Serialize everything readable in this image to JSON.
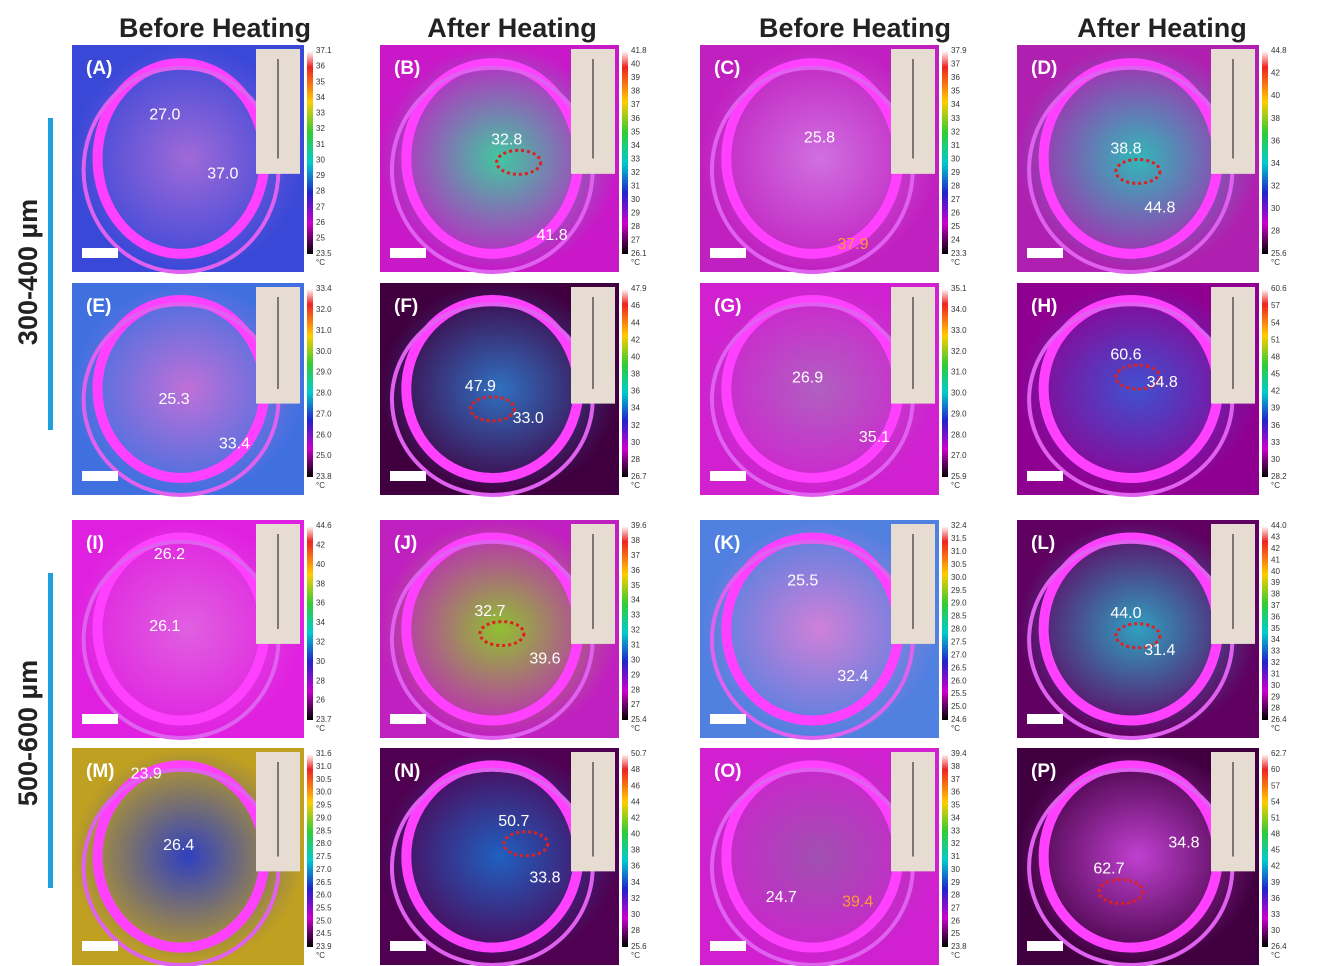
{
  "headers": [
    "Before Heating",
    "After Heating",
    "Before Heating",
    "After Heating"
  ],
  "row_labels": [
    "300-400 µm",
    "500-600 µm"
  ],
  "unit": "°C",
  "panels": [
    {
      "label": "(A)",
      "readings": [
        "27.0",
        "37.0"
      ],
      "scale": [
        "37.1",
        "36",
        "35",
        "34",
        "33",
        "32",
        "31",
        "30",
        "29",
        "28",
        "27",
        "26",
        "25",
        "23.5"
      ]
    },
    {
      "label": "(B)",
      "readings": [
        "32.8",
        "41.8"
      ],
      "scale": [
        "41.8",
        "40",
        "39",
        "38",
        "37",
        "36",
        "35",
        "34",
        "33",
        "32",
        "31",
        "30",
        "29",
        "28",
        "27",
        "26.1"
      ]
    },
    {
      "label": "(C)",
      "readings": [
        "25.8",
        "37.9"
      ],
      "scale": [
        "37.9",
        "37",
        "36",
        "35",
        "34",
        "33",
        "32",
        "31",
        "30",
        "29",
        "28",
        "27",
        "26",
        "25",
        "24",
        "23.3"
      ]
    },
    {
      "label": "(D)",
      "readings": [
        "38.8",
        "44.8"
      ],
      "scale": [
        "44.8",
        "42",
        "40",
        "38",
        "36",
        "34",
        "32",
        "30",
        "28",
        "25.6"
      ]
    },
    {
      "label": "(E)",
      "readings": [
        "25.3",
        "33.4"
      ],
      "scale": [
        "33.4",
        "32.0",
        "31.0",
        "30.0",
        "29.0",
        "28.0",
        "27.0",
        "26.0",
        "25.0",
        "23.8"
      ]
    },
    {
      "label": "(F)",
      "readings": [
        "47.9",
        "33.0"
      ],
      "scale": [
        "47.9",
        "46",
        "44",
        "42",
        "40",
        "38",
        "36",
        "34",
        "32",
        "30",
        "28",
        "26.7"
      ]
    },
    {
      "label": "(G)",
      "readings": [
        "26.9",
        "35.1"
      ],
      "scale": [
        "35.1",
        "34.0",
        "33.0",
        "32.0",
        "31.0",
        "30.0",
        "29.0",
        "28.0",
        "27.0",
        "25.9"
      ]
    },
    {
      "label": "(H)",
      "readings": [
        "60.6",
        "34.8"
      ],
      "scale": [
        "60.6",
        "57",
        "54",
        "51",
        "48",
        "45",
        "42",
        "39",
        "36",
        "33",
        "30",
        "28.2"
      ]
    },
    {
      "label": "(I)",
      "readings": [
        "26.2",
        "26.1"
      ],
      "scale": [
        "44.6",
        "42",
        "40",
        "38",
        "36",
        "34",
        "32",
        "30",
        "28",
        "26",
        "23.7"
      ]
    },
    {
      "label": "(J)",
      "readings": [
        "32.7",
        "39.6"
      ],
      "scale": [
        "39.6",
        "38",
        "37",
        "36",
        "35",
        "34",
        "33",
        "32",
        "31",
        "30",
        "29",
        "28",
        "27",
        "25.4"
      ]
    },
    {
      "label": "(K)",
      "readings": [
        "25.5",
        "32.4"
      ],
      "scale": [
        "32.4",
        "31.5",
        "31.0",
        "30.5",
        "30.0",
        "29.5",
        "29.0",
        "28.5",
        "28.0",
        "27.5",
        "27.0",
        "26.5",
        "26.0",
        "25.5",
        "25.0",
        "24.6"
      ]
    },
    {
      "label": "(L)",
      "readings": [
        "44.0",
        "31.4"
      ],
      "scale": [
        "44.0",
        "43",
        "42",
        "41",
        "40",
        "39",
        "38",
        "37",
        "36",
        "35",
        "34",
        "33",
        "32",
        "31",
        "30",
        "29",
        "28",
        "26.4"
      ]
    },
    {
      "label": "(M)",
      "readings": [
        "23.9",
        "26.4"
      ],
      "scale": [
        "31.6",
        "31.0",
        "30.5",
        "30.0",
        "29.5",
        "29.0",
        "28.5",
        "28.0",
        "27.5",
        "27.0",
        "26.5",
        "26.0",
        "25.5",
        "25.0",
        "24.5",
        "23.9"
      ]
    },
    {
      "label": "(N)",
      "readings": [
        "50.7",
        "33.8"
      ],
      "scale": [
        "50.7",
        "48",
        "46",
        "44",
        "42",
        "40",
        "38",
        "36",
        "34",
        "32",
        "30",
        "28",
        "25.6"
      ]
    },
    {
      "label": "(O)",
      "readings": [
        "24.7",
        "39.4"
      ],
      "scale": [
        "39.4",
        "38",
        "37",
        "36",
        "35",
        "34",
        "33",
        "32",
        "31",
        "30",
        "29",
        "28",
        "27",
        "26",
        "25",
        "23.8"
      ]
    },
    {
      "label": "(P)",
      "readings": [
        "62.7",
        "34.8"
      ],
      "scale": [
        "62.7",
        "60",
        "57",
        "54",
        "51",
        "48",
        "45",
        "42",
        "39",
        "36",
        "33",
        "30",
        "26.4"
      ]
    }
  ]
}
